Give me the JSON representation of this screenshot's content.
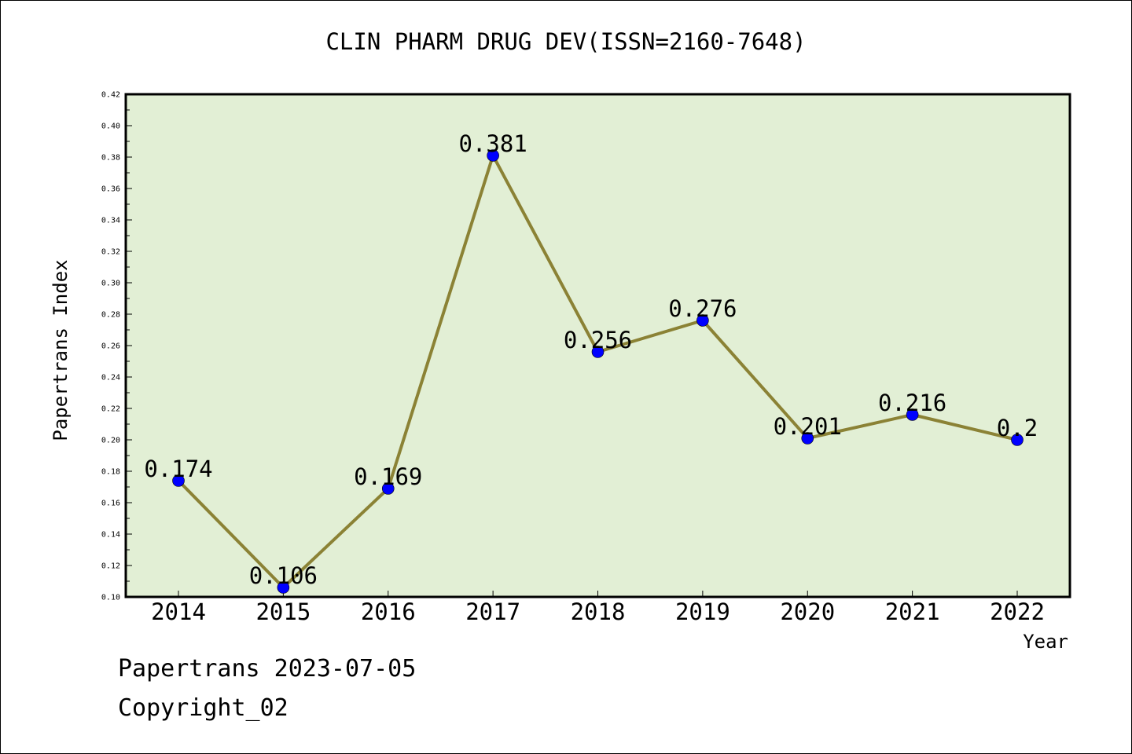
{
  "page": {
    "title": "CLIN PHARM DRUG DEV(ISSN=2160-7648)",
    "footer_line1": "Papertrans 2023-07-05",
    "footer_line2": "Copyright_02"
  },
  "chart_data": {
    "type": "line",
    "title": "CLIN PHARM DRUG DEV(ISSN=2160-7648)",
    "xlabel": "Year",
    "ylabel": "Papertrans Index",
    "categories": [
      "2014",
      "2015",
      "2016",
      "2017",
      "2018",
      "2019",
      "2020",
      "2021",
      "2022"
    ],
    "values": [
      0.174,
      0.106,
      0.169,
      0.381,
      0.256,
      0.276,
      0.201,
      0.216,
      0.2
    ],
    "data_labels": [
      "0.174",
      "0.106",
      "0.169",
      "0.381",
      "0.256",
      "0.276",
      "0.201",
      "0.216",
      "0.2"
    ],
    "ylim": [
      0.1,
      0.42
    ],
    "yticks": [
      "0.10",
      "0.12",
      "0.14",
      "0.16",
      "0.18",
      "0.20",
      "0.22",
      "0.24",
      "0.26",
      "0.28",
      "0.30",
      "0.32",
      "0.34",
      "0.36",
      "0.38",
      "0.40",
      "0.42"
    ],
    "grid": false,
    "colors": {
      "plot_background": "#e2efd5",
      "line": "#8b8235",
      "marker": "#0000ff",
      "axis": "#000000"
    }
  }
}
